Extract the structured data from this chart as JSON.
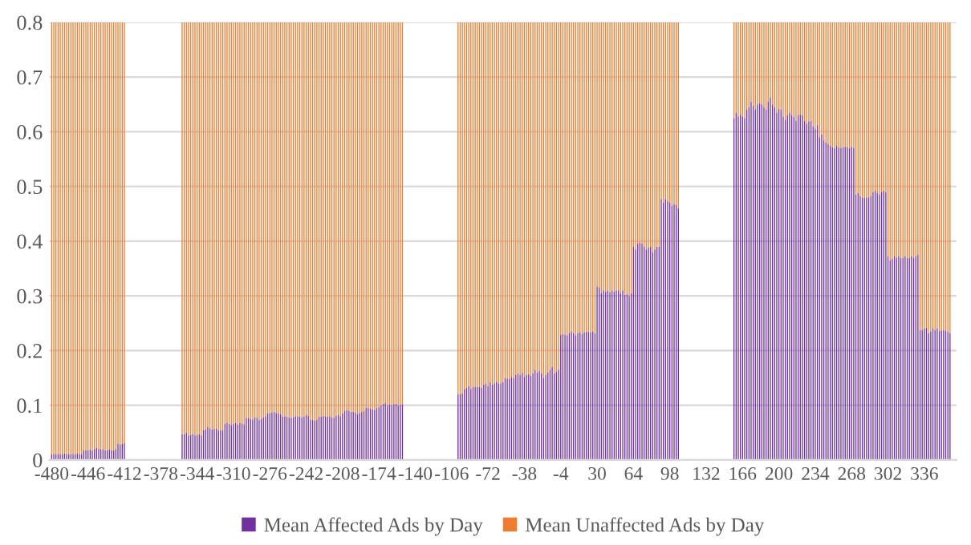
{
  "chart_data": {
    "type": "bar",
    "stacked": true,
    "x": [
      -480,
      -478,
      -476,
      -474,
      -472,
      -470,
      -468,
      -466,
      -464,
      -462,
      -460,
      -458,
      -456,
      -454,
      -452,
      -450,
      -448,
      -446,
      -444,
      -442,
      -440,
      -438,
      -436,
      -434,
      -432,
      -430,
      -428,
      -426,
      -424,
      -422,
      -420,
      -418,
      -416,
      -414,
      -412,
      -358,
      -356,
      -354,
      -352,
      -350,
      -348,
      -346,
      -344,
      -342,
      -340,
      -338,
      -336,
      -334,
      -332,
      -330,
      -328,
      -326,
      -324,
      -322,
      -320,
      -318,
      -316,
      -314,
      -312,
      -310,
      -308,
      -306,
      -304,
      -302,
      -300,
      -298,
      -296,
      -294,
      -292,
      -290,
      -288,
      -286,
      -284,
      -282,
      -280,
      -278,
      -276,
      -274,
      -272,
      -270,
      -268,
      -266,
      -264,
      -262,
      -260,
      -258,
      -256,
      -254,
      -252,
      -250,
      -248,
      -246,
      -244,
      -242,
      -240,
      -238,
      -236,
      -234,
      -232,
      -230,
      -228,
      -226,
      -224,
      -222,
      -220,
      -218,
      -216,
      -214,
      -212,
      -210,
      -208,
      -206,
      -204,
      -202,
      -200,
      -198,
      -196,
      -194,
      -192,
      -190,
      -188,
      -186,
      -184,
      -182,
      -180,
      -178,
      -176,
      -174,
      -172,
      -170,
      -168,
      -166,
      -164,
      -162,
      -160,
      -158,
      -156,
      -154,
      -152,
      -100,
      -98,
      -96,
      -94,
      -92,
      -90,
      -88,
      -86,
      -84,
      -82,
      -80,
      -78,
      -76,
      -74,
      -72,
      -70,
      -68,
      -66,
      -64,
      -62,
      -60,
      -58,
      -56,
      -54,
      -52,
      -50,
      -48,
      -46,
      -44,
      -42,
      -40,
      -38,
      -36,
      -34,
      -32,
      -30,
      -28,
      -26,
      -24,
      -22,
      -20,
      -18,
      -16,
      -14,
      -12,
      -10,
      -8,
      -6,
      -4,
      -2,
      0,
      2,
      4,
      6,
      8,
      10,
      12,
      14,
      16,
      18,
      20,
      22,
      24,
      26,
      28,
      30,
      32,
      34,
      36,
      38,
      40,
      42,
      44,
      46,
      48,
      50,
      52,
      54,
      56,
      58,
      60,
      62,
      64,
      66,
      68,
      70,
      72,
      74,
      76,
      78,
      80,
      82,
      84,
      86,
      88,
      90,
      92,
      94,
      96,
      98,
      100,
      102,
      104,
      106,
      158,
      160,
      162,
      164,
      166,
      168,
      170,
      172,
      174,
      176,
      178,
      180,
      182,
      184,
      186,
      188,
      190,
      192,
      194,
      196,
      198,
      200,
      202,
      204,
      206,
      208,
      210,
      212,
      214,
      216,
      218,
      220,
      222,
      224,
      226,
      228,
      230,
      232,
      234,
      236,
      238,
      240,
      242,
      244,
      246,
      248,
      250,
      252,
      254,
      256,
      258,
      260,
      262,
      264,
      266,
      268,
      270,
      272,
      274,
      276,
      278,
      280,
      282,
      284,
      286,
      288,
      290,
      292,
      294,
      296,
      298,
      300,
      302,
      304,
      306,
      308,
      310,
      312,
      314,
      316,
      318,
      320,
      322,
      324,
      326,
      328,
      330,
      332,
      334,
      336,
      338,
      340,
      342,
      344,
      346,
      348,
      350,
      352,
      354,
      356,
      358,
      360
    ],
    "series": [
      {
        "name": "Mean Affected Ads by Day",
        "color": "#7030a0",
        "values": [
          0.01,
          0.01,
          0.01,
          0.01,
          0.01,
          0.011,
          0.012,
          0.01,
          0.011,
          0.01,
          0.01,
          0.01,
          0.012,
          0.011,
          0.01,
          0.018,
          0.018,
          0.018,
          0.019,
          0.018,
          0.02,
          0.022,
          0.021,
          0.019,
          0.02,
          0.018,
          0.018,
          0.019,
          0.018,
          0.018,
          0.02,
          0.03,
          0.029,
          0.03,
          0.031,
          0.047,
          0.047,
          0.05,
          0.045,
          0.046,
          0.047,
          0.045,
          0.046,
          0.047,
          0.045,
          0.055,
          0.056,
          0.06,
          0.058,
          0.056,
          0.057,
          0.057,
          0.055,
          0.055,
          0.054,
          0.066,
          0.068,
          0.066,
          0.064,
          0.066,
          0.068,
          0.065,
          0.068,
          0.067,
          0.065,
          0.076,
          0.077,
          0.075,
          0.074,
          0.078,
          0.077,
          0.074,
          0.075,
          0.078,
          0.08,
          0.085,
          0.086,
          0.087,
          0.088,
          0.086,
          0.085,
          0.084,
          0.079,
          0.08,
          0.079,
          0.078,
          0.077,
          0.078,
          0.08,
          0.08,
          0.08,
          0.078,
          0.079,
          0.082,
          0.081,
          0.073,
          0.073,
          0.072,
          0.073,
          0.079,
          0.079,
          0.081,
          0.08,
          0.079,
          0.08,
          0.078,
          0.077,
          0.081,
          0.082,
          0.08,
          0.085,
          0.09,
          0.092,
          0.09,
          0.088,
          0.088,
          0.087,
          0.084,
          0.086,
          0.088,
          0.09,
          0.095,
          0.096,
          0.094,
          0.093,
          0.092,
          0.095,
          0.097,
          0.1,
          0.103,
          0.104,
          0.1,
          0.101,
          0.1,
          0.102,
          0.103,
          0.1,
          0.101,
          0.102,
          0.12,
          0.12,
          0.122,
          0.13,
          0.132,
          0.135,
          0.13,
          0.134,
          0.134,
          0.134,
          0.134,
          0.132,
          0.138,
          0.14,
          0.135,
          0.142,
          0.138,
          0.14,
          0.143,
          0.14,
          0.14,
          0.142,
          0.15,
          0.148,
          0.148,
          0.152,
          0.15,
          0.155,
          0.158,
          0.156,
          0.16,
          0.152,
          0.156,
          0.157,
          0.154,
          0.158,
          0.165,
          0.16,
          0.163,
          0.158,
          0.15,
          0.155,
          0.16,
          0.165,
          0.17,
          0.158,
          0.162,
          0.165,
          0.229,
          0.23,
          0.229,
          0.228,
          0.232,
          0.235,
          0.232,
          0.228,
          0.232,
          0.234,
          0.23,
          0.233,
          0.235,
          0.234,
          0.233,
          0.235,
          0.232,
          0.317,
          0.315,
          0.305,
          0.31,
          0.308,
          0.31,
          0.306,
          0.31,
          0.308,
          0.31,
          0.31,
          0.305,
          0.31,
          0.302,
          0.303,
          0.3,
          0.305,
          0.39,
          0.385,
          0.395,
          0.398,
          0.395,
          0.39,
          0.385,
          0.388,
          0.39,
          0.38,
          0.385,
          0.39,
          0.39,
          0.477,
          0.47,
          0.477,
          0.474,
          0.47,
          0.465,
          0.468,
          0.466,
          0.46,
          0.625,
          0.635,
          0.628,
          0.632,
          0.628,
          0.625,
          0.64,
          0.645,
          0.655,
          0.648,
          0.64,
          0.65,
          0.652,
          0.65,
          0.645,
          0.64,
          0.655,
          0.662,
          0.65,
          0.645,
          0.635,
          0.642,
          0.64,
          0.628,
          0.622,
          0.63,
          0.635,
          0.63,
          0.627,
          0.62,
          0.63,
          0.632,
          0.63,
          0.62,
          0.615,
          0.618,
          0.62,
          0.61,
          0.605,
          0.612,
          0.59,
          0.595,
          0.585,
          0.58,
          0.578,
          0.575,
          0.572,
          0.57,
          0.575,
          0.572,
          0.57,
          0.572,
          0.573,
          0.572,
          0.57,
          0.573,
          0.571,
          0.485,
          0.488,
          0.482,
          0.48,
          0.479,
          0.48,
          0.48,
          0.483,
          0.49,
          0.492,
          0.488,
          0.485,
          0.49,
          0.492,
          0.49,
          0.372,
          0.365,
          0.368,
          0.372,
          0.37,
          0.372,
          0.37,
          0.37,
          0.372,
          0.37,
          0.37,
          0.372,
          0.37,
          0.372,
          0.375,
          0.238,
          0.238,
          0.24,
          0.242,
          0.232,
          0.235,
          0.24,
          0.238,
          0.24,
          0.236,
          0.237,
          0.238,
          0.236,
          0.235,
          0.232
        ]
      },
      {
        "name": "Mean Unaffected Ads by Day",
        "color": "#ed7d31",
        "values": [
          0.79,
          0.79,
          0.79,
          0.79,
          0.79,
          0.789,
          0.788,
          0.79,
          0.789,
          0.79,
          0.79,
          0.79,
          0.788,
          0.789,
          0.79,
          0.782,
          0.782,
          0.782,
          0.781,
          0.782,
          0.78,
          0.778,
          0.779,
          0.781,
          0.78,
          0.782,
          0.782,
          0.781,
          0.782,
          0.782,
          0.78,
          0.77,
          0.771,
          0.77,
          0.769,
          0.753,
          0.753,
          0.75,
          0.755,
          0.754,
          0.753,
          0.755,
          0.754,
          0.753,
          0.755,
          0.745,
          0.744,
          0.74,
          0.742,
          0.744,
          0.743,
          0.743,
          0.745,
          0.745,
          0.746,
          0.734,
          0.732,
          0.734,
          0.736,
          0.734,
          0.732,
          0.735,
          0.732,
          0.733,
          0.735,
          0.724,
          0.723,
          0.725,
          0.726,
          0.722,
          0.723,
          0.726,
          0.725,
          0.722,
          0.72,
          0.715,
          0.714,
          0.713,
          0.712,
          0.714,
          0.715,
          0.716,
          0.721,
          0.72,
          0.721,
          0.722,
          0.723,
          0.722,
          0.72,
          0.72,
          0.72,
          0.722,
          0.721,
          0.718,
          0.719,
          0.727,
          0.727,
          0.728,
          0.727,
          0.721,
          0.721,
          0.719,
          0.72,
          0.721,
          0.72,
          0.722,
          0.723,
          0.719,
          0.718,
          0.72,
          0.715,
          0.71,
          0.708,
          0.71,
          0.712,
          0.712,
          0.713,
          0.716,
          0.714,
          0.712,
          0.71,
          0.705,
          0.704,
          0.706,
          0.707,
          0.708,
          0.705,
          0.703,
          0.7,
          0.697,
          0.696,
          0.7,
          0.699,
          0.7,
          0.698,
          0.697,
          0.7,
          0.699,
          0.698,
          0.68,
          0.68,
          0.678,
          0.67,
          0.668,
          0.665,
          0.67,
          0.666,
          0.666,
          0.666,
          0.666,
          0.668,
          0.662,
          0.66,
          0.665,
          0.658,
          0.662,
          0.66,
          0.657,
          0.66,
          0.66,
          0.658,
          0.65,
          0.652,
          0.652,
          0.648,
          0.65,
          0.645,
          0.642,
          0.644,
          0.64,
          0.648,
          0.644,
          0.643,
          0.646,
          0.642,
          0.635,
          0.64,
          0.637,
          0.642,
          0.65,
          0.645,
          0.64,
          0.635,
          0.63,
          0.642,
          0.638,
          0.635,
          0.571,
          0.57,
          0.571,
          0.572,
          0.568,
          0.565,
          0.568,
          0.572,
          0.568,
          0.566,
          0.57,
          0.567,
          0.565,
          0.566,
          0.567,
          0.565,
          0.568,
          0.483,
          0.485,
          0.495,
          0.49,
          0.492,
          0.49,
          0.494,
          0.49,
          0.492,
          0.49,
          0.49,
          0.495,
          0.49,
          0.498,
          0.497,
          0.5,
          0.495,
          0.41,
          0.415,
          0.405,
          0.402,
          0.405,
          0.41,
          0.415,
          0.412,
          0.41,
          0.42,
          0.415,
          0.41,
          0.41,
          0.323,
          0.33,
          0.323,
          0.326,
          0.33,
          0.335,
          0.332,
          0.334,
          0.34,
          0.175,
          0.165,
          0.172,
          0.168,
          0.172,
          0.175,
          0.16,
          0.155,
          0.145,
          0.152,
          0.16,
          0.15,
          0.148,
          0.15,
          0.155,
          0.16,
          0.145,
          0.138,
          0.15,
          0.155,
          0.165,
          0.158,
          0.16,
          0.172,
          0.178,
          0.17,
          0.165,
          0.17,
          0.173,
          0.18,
          0.17,
          0.168,
          0.17,
          0.18,
          0.185,
          0.182,
          0.18,
          0.19,
          0.195,
          0.188,
          0.21,
          0.205,
          0.215,
          0.22,
          0.222,
          0.225,
          0.228,
          0.23,
          0.225,
          0.228,
          0.23,
          0.228,
          0.227,
          0.228,
          0.23,
          0.227,
          0.229,
          0.315,
          0.312,
          0.318,
          0.32,
          0.321,
          0.32,
          0.32,
          0.317,
          0.31,
          0.308,
          0.312,
          0.315,
          0.31,
          0.308,
          0.31,
          0.428,
          0.435,
          0.432,
          0.428,
          0.43,
          0.428,
          0.43,
          0.43,
          0.428,
          0.43,
          0.43,
          0.428,
          0.43,
          0.428,
          0.425,
          0.562,
          0.562,
          0.56,
          0.558,
          0.568,
          0.565,
          0.56,
          0.562,
          0.56,
          0.564,
          0.563,
          0.562,
          0.564,
          0.565,
          0.568
        ]
      }
    ],
    "xlim": [
      -482,
      366
    ],
    "xticks": [
      -480,
      -446,
      -412,
      -378,
      -344,
      -310,
      -276,
      -242,
      -208,
      -174,
      -140,
      -106,
      -72,
      -38,
      -4,
      30,
      64,
      98,
      132,
      166,
      200,
      234,
      268,
      302,
      336
    ],
    "ylim": [
      0,
      0.8
    ],
    "yticks": [
      0,
      0.1,
      0.2,
      0.3,
      0.4,
      0.5,
      0.6,
      0.7,
      0.8
    ],
    "grid": "y",
    "legend": "bottom"
  }
}
